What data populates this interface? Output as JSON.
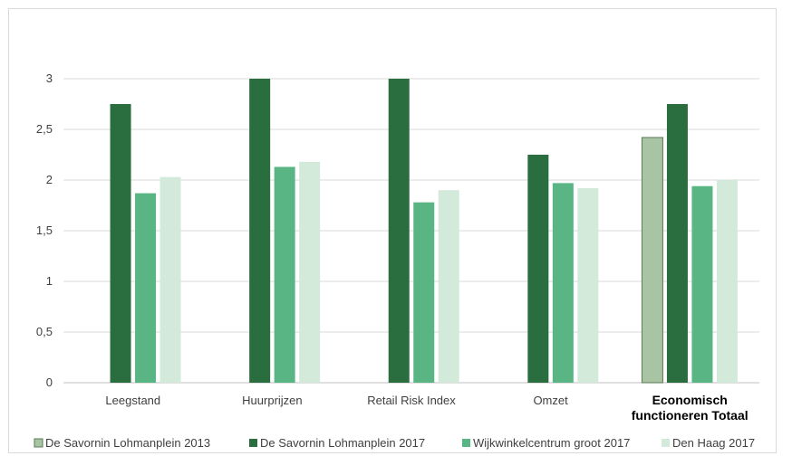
{
  "chart_data": {
    "type": "bar",
    "title": "",
    "xlabel": "",
    "ylabel": "",
    "ylim": [
      0,
      3
    ],
    "yticks": [
      "0",
      "0,5",
      "1",
      "1,5",
      "2",
      "2,5",
      "3"
    ],
    "grid": true,
    "legend_position": "bottom",
    "categories": [
      "Leegstand",
      "Huurprijzen",
      "Retail Risk Index",
      "Omzet",
      "Economisch functioneren Totaal"
    ],
    "category_label_lines": [
      [
        "Leegstand"
      ],
      [
        "Huurprijzen"
      ],
      [
        "Retail Risk Index"
      ],
      [
        "Omzet"
      ],
      [
        "Economisch",
        "functioneren Totaal"
      ]
    ],
    "bold_categories": [
      "Economisch functioneren Totaal"
    ],
    "series": [
      {
        "name": "De Savornin Lohmanplein 2013",
        "color": "#a9c4a3",
        "outline": "#5a7a55",
        "values": [
          null,
          null,
          null,
          null,
          2.42
        ]
      },
      {
        "name": "De Savornin Lohmanplein 2017",
        "color": "#2a6e3f",
        "outline": null,
        "values": [
          2.75,
          3.0,
          3.0,
          2.25,
          2.75
        ]
      },
      {
        "name": "Wijkwinkelcentrum groot 2017",
        "color": "#5ab584",
        "outline": null,
        "values": [
          1.87,
          2.13,
          1.78,
          1.97,
          1.94
        ]
      },
      {
        "name": "Den Haag 2017",
        "color": "#d3eadb",
        "outline": null,
        "values": [
          2.03,
          2.18,
          1.9,
          1.92,
          2.0
        ]
      }
    ]
  }
}
